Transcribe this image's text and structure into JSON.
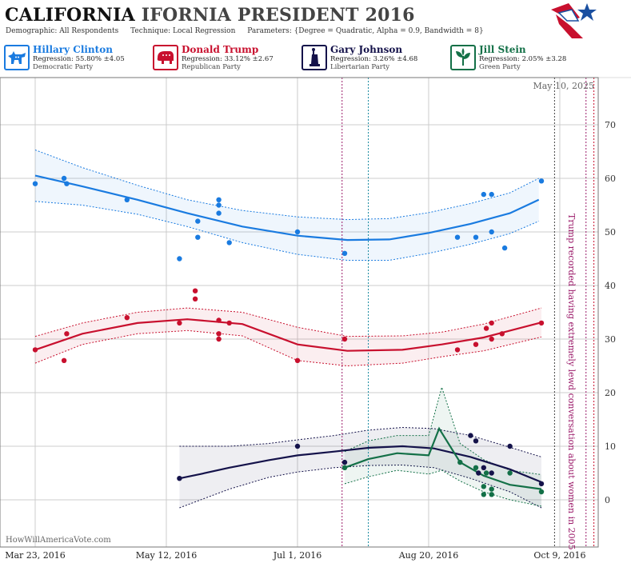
{
  "header": {
    "title_main": "CALIFORNIA",
    "title_rest": "IFORNIA PRESIDENT 2016",
    "demographic": "Demographic: All Respondents",
    "technique": "Technique: Local Regression",
    "parameters": "Parameters: {Degree = Quadratic, Alpha = 0.9, Bandwidth = 8}"
  },
  "candidates": [
    {
      "name": "Hillary Clinton",
      "regression": "Regression: 55.80% ±4.05",
      "party": "Democratic Party",
      "color": "#1a7be0",
      "icon": "donkey-icon"
    },
    {
      "name": "Donald Trump",
      "regression": "Regression: 33.12% ±2.67",
      "party": "Republican Party",
      "color": "#c8102e",
      "icon": "elephant-icon"
    },
    {
      "name": "Gary Johnson",
      "regression": "Regression: 3.26% ±4.68",
      "party": "Libertarian Party",
      "color": "#14124a",
      "icon": "statue-of-liberty-icon"
    },
    {
      "name": "Jill Stein",
      "regression": "Regression: 2.05% ±3.28",
      "party": "Green Party",
      "color": "#137047",
      "icon": "leaf-icon"
    }
  ],
  "footer": {
    "source": "HowWillAmericaVote.com"
  },
  "chart_data": {
    "type": "scatter",
    "date_stamp": "May 10, 2025",
    "annotation": "Trump recorded having extremely lewd conversation about women in 2005",
    "x_ticks": [
      "Mar 23, 2016",
      "May 12, 2016",
      "Jul 1, 2016",
      "Aug 20, 2016",
      "Oct 9, 2016"
    ],
    "xlim": [
      "2016-03-22",
      "2016-10-22"
    ],
    "ylim": [
      -6,
      80
    ],
    "y_ticks": [
      0,
      10,
      20,
      30,
      40,
      50,
      60,
      70
    ],
    "grid": true,
    "event_lines": [
      {
        "date": "2016-07-18",
        "color": "#9b1b6a"
      },
      {
        "date": "2016-07-28",
        "color": "#1a8aa0"
      },
      {
        "date": "2016-10-07",
        "color": "#444444"
      },
      {
        "date": "2016-10-19",
        "color": "#9b1b6a"
      },
      {
        "date": "2016-10-22",
        "color": "#c8102e"
      }
    ],
    "series": [
      {
        "name": "Hillary Clinton",
        "color": "#1a7be0",
        "trend": [
          [
            "2016-03-23",
            60.5
          ],
          [
            "2016-04-10",
            58.5
          ],
          [
            "2016-05-01",
            56
          ],
          [
            "2016-05-20",
            53.5
          ],
          [
            "2016-06-10",
            51
          ],
          [
            "2016-07-01",
            49.3
          ],
          [
            "2016-07-20",
            48.5
          ],
          [
            "2016-08-05",
            48.6
          ],
          [
            "2016-08-20",
            49.8
          ],
          [
            "2016-09-05",
            51.5
          ],
          [
            "2016-09-20",
            53.5
          ],
          [
            "2016-10-01",
            56
          ]
        ],
        "upper": [
          [
            "2016-03-23",
            65.3
          ],
          [
            "2016-04-10",
            62
          ],
          [
            "2016-05-01",
            58.7
          ],
          [
            "2016-05-20",
            56
          ],
          [
            "2016-06-10",
            54
          ],
          [
            "2016-07-01",
            52.8
          ],
          [
            "2016-07-20",
            52.3
          ],
          [
            "2016-08-05",
            52.5
          ],
          [
            "2016-08-20",
            53.6
          ],
          [
            "2016-09-05",
            55.3
          ],
          [
            "2016-09-20",
            57.3
          ],
          [
            "2016-10-01",
            60
          ]
        ],
        "lower": [
          [
            "2016-03-23",
            55.7
          ],
          [
            "2016-04-10",
            55
          ],
          [
            "2016-05-01",
            53.3
          ],
          [
            "2016-05-20",
            51
          ],
          [
            "2016-06-10",
            48
          ],
          [
            "2016-07-01",
            45.8
          ],
          [
            "2016-07-20",
            44.7
          ],
          [
            "2016-08-05",
            44.7
          ],
          [
            "2016-08-20",
            46
          ],
          [
            "2016-09-05",
            47.7
          ],
          [
            "2016-09-20",
            49.7
          ],
          [
            "2016-10-01",
            52
          ]
        ],
        "points": [
          [
            "2016-03-23",
            59
          ],
          [
            "2016-04-03",
            60
          ],
          [
            "2016-04-04",
            59
          ],
          [
            "2016-04-27",
            56
          ],
          [
            "2016-05-17",
            45
          ],
          [
            "2016-05-24",
            49
          ],
          [
            "2016-05-24",
            52
          ],
          [
            "2016-06-01",
            56
          ],
          [
            "2016-06-01",
            55
          ],
          [
            "2016-06-01",
            53.5
          ],
          [
            "2016-06-05",
            48
          ],
          [
            "2016-07-01",
            50
          ],
          [
            "2016-07-19",
            46
          ],
          [
            "2016-08-31",
            49
          ],
          [
            "2016-09-07",
            49
          ],
          [
            "2016-09-10",
            57
          ],
          [
            "2016-09-13",
            57
          ],
          [
            "2016-09-13",
            50
          ],
          [
            "2016-09-18",
            47
          ],
          [
            "2016-10-02",
            59.5
          ]
        ]
      },
      {
        "name": "Donald Trump",
        "color": "#c8102e",
        "trend": [
          [
            "2016-03-23",
            28
          ],
          [
            "2016-04-10",
            31
          ],
          [
            "2016-05-01",
            33
          ],
          [
            "2016-05-20",
            33.7
          ],
          [
            "2016-06-10",
            32.8
          ],
          [
            "2016-07-01",
            29
          ],
          [
            "2016-07-20",
            27.8
          ],
          [
            "2016-08-10",
            28
          ],
          [
            "2016-08-25",
            29
          ],
          [
            "2016-09-10",
            30.3
          ],
          [
            "2016-10-02",
            33.1
          ]
        ],
        "upper": [
          [
            "2016-03-23",
            30.5
          ],
          [
            "2016-04-10",
            33
          ],
          [
            "2016-05-01",
            35
          ],
          [
            "2016-05-20",
            35.8
          ],
          [
            "2016-06-10",
            35
          ],
          [
            "2016-07-01",
            32.2
          ],
          [
            "2016-07-20",
            30.5
          ],
          [
            "2016-08-10",
            30.6
          ],
          [
            "2016-08-25",
            31.3
          ],
          [
            "2016-09-10",
            32.8
          ],
          [
            "2016-10-02",
            35.8
          ]
        ],
        "lower": [
          [
            "2016-03-23",
            25.5
          ],
          [
            "2016-04-10",
            29
          ],
          [
            "2016-05-01",
            31
          ],
          [
            "2016-05-20",
            31.6
          ],
          [
            "2016-06-10",
            30.6
          ],
          [
            "2016-07-01",
            26
          ],
          [
            "2016-07-20",
            25
          ],
          [
            "2016-08-10",
            25.5
          ],
          [
            "2016-08-25",
            26.7
          ],
          [
            "2016-09-10",
            27.8
          ],
          [
            "2016-10-02",
            30.4
          ]
        ],
        "points": [
          [
            "2016-03-23",
            28
          ],
          [
            "2016-04-03",
            26
          ],
          [
            "2016-04-04",
            31
          ],
          [
            "2016-04-27",
            34
          ],
          [
            "2016-05-17",
            33
          ],
          [
            "2016-05-23",
            39
          ],
          [
            "2016-05-23",
            37.5
          ],
          [
            "2016-06-01",
            33.5
          ],
          [
            "2016-06-01",
            31
          ],
          [
            "2016-06-01",
            30
          ],
          [
            "2016-06-05",
            33
          ],
          [
            "2016-07-01",
            26
          ],
          [
            "2016-07-19",
            30
          ],
          [
            "2016-08-31",
            28
          ],
          [
            "2016-09-07",
            29
          ],
          [
            "2016-09-11",
            32
          ],
          [
            "2016-09-13",
            33
          ],
          [
            "2016-09-13",
            30
          ],
          [
            "2016-09-17",
            31
          ],
          [
            "2016-10-02",
            33
          ]
        ]
      },
      {
        "name": "Gary Johnson",
        "color": "#14124a",
        "trend": [
          [
            "2016-05-17",
            4
          ],
          [
            "2016-05-25",
            4.8
          ],
          [
            "2016-06-05",
            6
          ],
          [
            "2016-06-20",
            7.4
          ],
          [
            "2016-07-01",
            8.3
          ],
          [
            "2016-07-15",
            9
          ],
          [
            "2016-07-28",
            9.7
          ],
          [
            "2016-08-10",
            10
          ],
          [
            "2016-08-22",
            9.6
          ],
          [
            "2016-09-05",
            8
          ],
          [
            "2016-09-20",
            5.7
          ],
          [
            "2016-10-02",
            3.3
          ]
        ],
        "upper": [
          [
            "2016-05-17",
            10
          ],
          [
            "2016-06-05",
            10
          ],
          [
            "2016-06-20",
            10.5
          ],
          [
            "2016-07-01",
            11.2
          ],
          [
            "2016-07-15",
            12
          ],
          [
            "2016-07-28",
            13
          ],
          [
            "2016-08-10",
            13.5
          ],
          [
            "2016-08-22",
            13.3
          ],
          [
            "2016-09-05",
            12
          ],
          [
            "2016-09-20",
            9.8
          ],
          [
            "2016-10-02",
            8
          ]
        ],
        "lower": [
          [
            "2016-05-17",
            -1.5
          ],
          [
            "2016-06-05",
            2
          ],
          [
            "2016-06-20",
            4.2
          ],
          [
            "2016-07-01",
            5.2
          ],
          [
            "2016-07-15",
            6
          ],
          [
            "2016-07-28",
            6.4
          ],
          [
            "2016-08-10",
            6.5
          ],
          [
            "2016-08-22",
            6
          ],
          [
            "2016-09-05",
            4
          ],
          [
            "2016-09-20",
            1.5
          ],
          [
            "2016-10-02",
            -1.5
          ]
        ],
        "points": [
          [
            "2016-05-17",
            4
          ],
          [
            "2016-07-01",
            10
          ],
          [
            "2016-07-19",
            7
          ],
          [
            "2016-09-05",
            12
          ],
          [
            "2016-09-07",
            11
          ],
          [
            "2016-09-08",
            5
          ],
          [
            "2016-09-10",
            6
          ],
          [
            "2016-09-13",
            5
          ],
          [
            "2016-09-20",
            10
          ],
          [
            "2016-10-02",
            3
          ]
        ]
      },
      {
        "name": "Jill Stein",
        "color": "#137047",
        "trend": [
          [
            "2016-07-19",
            6
          ],
          [
            "2016-07-28",
            7.6
          ],
          [
            "2016-08-08",
            8.7
          ],
          [
            "2016-08-20",
            8.3
          ],
          [
            "2016-08-24",
            13.3
          ],
          [
            "2016-09-01",
            7
          ],
          [
            "2016-09-10",
            4.5
          ],
          [
            "2016-09-20",
            2.8
          ],
          [
            "2016-10-02",
            2
          ]
        ],
        "upper": [
          [
            "2016-07-19",
            9
          ],
          [
            "2016-07-28",
            11
          ],
          [
            "2016-08-08",
            12
          ],
          [
            "2016-08-20",
            12
          ],
          [
            "2016-08-25",
            21
          ],
          [
            "2016-09-01",
            10.5
          ],
          [
            "2016-09-10",
            7.5
          ],
          [
            "2016-09-20",
            5.5
          ],
          [
            "2016-10-02",
            4.7
          ]
        ],
        "lower": [
          [
            "2016-07-19",
            3
          ],
          [
            "2016-07-28",
            4.3
          ],
          [
            "2016-08-08",
            5.5
          ],
          [
            "2016-08-20",
            4.8
          ],
          [
            "2016-08-25",
            5.5
          ],
          [
            "2016-09-01",
            3.5
          ],
          [
            "2016-09-10",
            1.5
          ],
          [
            "2016-09-20",
            0
          ],
          [
            "2016-10-02",
            -1.2
          ]
        ],
        "points": [
          [
            "2016-07-19",
            6
          ],
          [
            "2016-09-01",
            7
          ],
          [
            "2016-09-07",
            6
          ],
          [
            "2016-09-10",
            2.5
          ],
          [
            "2016-09-10",
            1
          ],
          [
            "2016-09-11",
            5
          ],
          [
            "2016-09-13",
            2
          ],
          [
            "2016-09-13",
            1
          ],
          [
            "2016-09-20",
            5
          ],
          [
            "2016-10-02",
            1.5
          ]
        ]
      }
    ]
  }
}
